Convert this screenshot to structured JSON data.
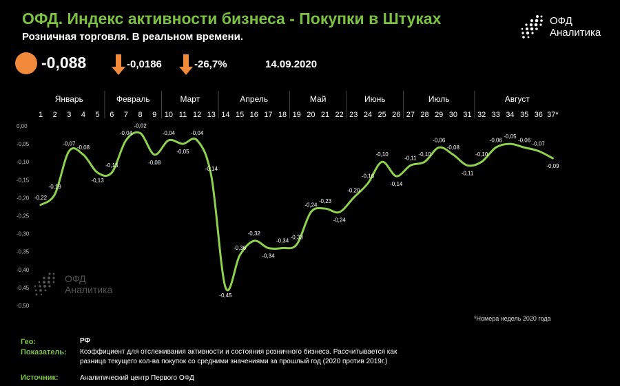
{
  "header": {
    "title": "ОФД. Индекс активности бизнеса - Покупки в Штуках",
    "subtitle": "Розничная торговля. В реальном времени."
  },
  "logo": {
    "line1": "ОФД",
    "line2": "Аналитика"
  },
  "watermark": {
    "line1": "ОФД",
    "line2": "Аналитика"
  },
  "kpi": {
    "value": "-0,088",
    "dot_color": "#f08a3a",
    "change_abs": "-0,0186",
    "change_pct": "-26,7%",
    "arrow_color": "#f08a3a",
    "date": "14.09.2020"
  },
  "colors": {
    "accent": "#7cc142",
    "line": "#8fd14f",
    "axis": "#444444"
  },
  "chart_data": {
    "type": "line",
    "months": [
      {
        "name": "Январь",
        "start": 1,
        "end": 5
      },
      {
        "name": "Февраль",
        "start": 6,
        "end": 9
      },
      {
        "name": "Март",
        "start": 10,
        "end": 13
      },
      {
        "name": "Апрель",
        "start": 14,
        "end": 18
      },
      {
        "name": "Май",
        "start": 19,
        "end": 22
      },
      {
        "name": "Июнь",
        "start": 23,
        "end": 26
      },
      {
        "name": "Июль",
        "start": 27,
        "end": 31
      },
      {
        "name": "Август",
        "start": 32,
        "end": 37
      }
    ],
    "x": [
      1,
      2,
      3,
      4,
      5,
      6,
      7,
      8,
      9,
      10,
      11,
      12,
      13,
      14,
      15,
      16,
      17,
      18,
      19,
      20,
      21,
      22,
      23,
      24,
      25,
      26,
      27,
      28,
      29,
      30,
      31,
      32,
      33,
      34,
      35,
      36,
      37
    ],
    "x_tick_labels": [
      "1",
      "2",
      "3",
      "4",
      "5",
      "6",
      "7",
      "8",
      "9",
      "10",
      "11",
      "12",
      "13",
      "14",
      "15",
      "16",
      "17",
      "18",
      "19",
      "20",
      "21",
      "22",
      "23",
      "24",
      "25",
      "26",
      "27",
      "28",
      "29",
      "30",
      "31",
      "32",
      "33",
      "34",
      "35",
      "36",
      "37*"
    ],
    "values": [
      -0.22,
      -0.19,
      -0.07,
      -0.08,
      -0.13,
      -0.13,
      -0.04,
      -0.02,
      -0.08,
      -0.04,
      -0.05,
      -0.04,
      -0.14,
      -0.45,
      -0.36,
      -0.32,
      -0.34,
      -0.34,
      -0.33,
      -0.24,
      -0.23,
      -0.24,
      -0.2,
      -0.16,
      -0.1,
      -0.14,
      -0.11,
      -0.1,
      -0.06,
      -0.08,
      -0.11,
      -0.1,
      -0.06,
      -0.05,
      -0.06,
      -0.07,
      -0.09
    ],
    "data_labels": [
      "-0,22",
      "-0,19",
      "-0,07",
      "-0,08",
      "-0,13",
      "-0,13",
      "-0,04",
      "-0,02",
      "-0,08",
      "-0,04",
      "-0,05",
      "-0,04",
      "-0,14",
      "-0,45",
      "-0,36",
      "-0,32",
      "-0,34",
      "-0,34",
      "-0,33",
      "-0,24",
      "-0,23",
      "-0,24",
      "-0,20",
      "-0,16",
      "-0,10",
      "-0,14",
      "-0,11",
      "-0,10",
      "-0,06",
      "-0,08",
      "-0,11",
      "-0,10",
      "-0,06",
      "-0,05",
      "-0,06",
      "-0,07",
      "-0,09"
    ],
    "y_ticks": [
      0,
      -0.05,
      -0.1,
      -0.15,
      -0.2,
      -0.25,
      -0.3,
      -0.35,
      -0.4,
      -0.45,
      -0.5
    ],
    "y_tick_labels": [
      "0,00",
      "-0,05",
      "-0,10",
      "-0,15",
      "-0,20",
      "-0,25",
      "-0,30",
      "-0,35",
      "-0,40",
      "-0,45",
      "-0,50"
    ],
    "ylim": [
      -0.5,
      0
    ],
    "xlim": [
      1,
      37
    ],
    "grid": false,
    "footnote": "*Номера недель 2020 года"
  },
  "footer": {
    "geo_label": "Гео:",
    "geo_value": "РФ",
    "indicator_label": "Показатель:",
    "indicator_line1": "Коэффициент для отслеживания активности и состояния розничного бизнеса. Рассчитывается как",
    "indicator_line2": "разница текущего кол-ва покупок со средними значениями за прошлый год (2020 против 2019г.)",
    "source_label": "Источник:",
    "source_value": "Аналитический центр  Первого ОФД"
  }
}
